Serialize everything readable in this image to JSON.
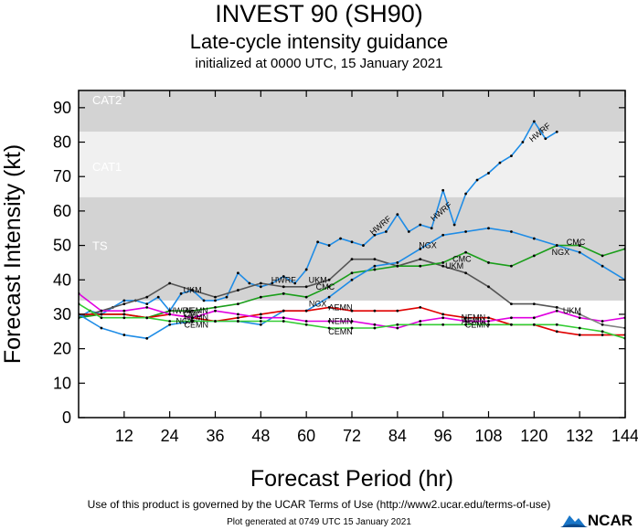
{
  "header": {
    "title": "INVEST 90 (SH90)",
    "subtitle": "Late-cycle intensity guidance",
    "init": "initialized at 0000 UTC, 15 January 2021"
  },
  "footer": {
    "terms": "Use of this product is governed by the UCAR Terms of Use (http://www2.ucar.edu/terms-of-use)",
    "generated": "Plot generated at 0749 UTC   15 January 2021",
    "logo_text": "NCAR"
  },
  "chart_data": {
    "type": "line",
    "xlabel": "Forecast Period (hr)",
    "ylabel": "Forecast Intensity (kt)",
    "xlim": [
      0,
      144
    ],
    "ylim": [
      0,
      95
    ],
    "xticks": [
      12,
      24,
      36,
      48,
      60,
      72,
      84,
      96,
      108,
      120,
      132,
      144
    ],
    "yticks": [
      0,
      10,
      20,
      30,
      40,
      50,
      60,
      70,
      80,
      90
    ],
    "bands": [
      {
        "label": "CAT2",
        "from": 83,
        "to": 95,
        "color": "#d3d3d3"
      },
      {
        "label": "CAT1",
        "from": 64,
        "to": 83,
        "color": "#f0f0f0"
      },
      {
        "label": "TS",
        "from": 34,
        "to": 64,
        "color": "#d3d3d3"
      }
    ],
    "series": [
      {
        "name": "HWRF",
        "color": "#1e8ce6",
        "x": [
          0,
          3,
          6,
          9,
          12,
          15,
          18,
          21,
          24,
          27,
          30,
          33,
          36,
          39,
          42,
          45,
          48,
          51,
          54,
          57,
          60,
          63,
          66,
          69,
          72,
          75,
          78,
          81,
          84,
          87,
          90,
          93,
          96,
          99,
          102,
          105,
          108,
          111,
          114,
          117,
          120,
          123,
          126
        ],
        "y": [
          29,
          31,
          30,
          32,
          34,
          34,
          33,
          35,
          31,
          36,
          37,
          34,
          34,
          35,
          42,
          39,
          38,
          39,
          41,
          39,
          43,
          51,
          50,
          52,
          51,
          50,
          53,
          54,
          59,
          54,
          56,
          55,
          66,
          56,
          65,
          69,
          71,
          74,
          76,
          80,
          86,
          81,
          83
        ],
        "labels": [
          {
            "x": 27,
            "y": 31
          },
          {
            "x": 54,
            "y": 40
          },
          {
            "x": 80,
            "y": 56
          },
          {
            "x": 96,
            "y": 60
          },
          {
            "x": 122,
            "y": 83
          }
        ]
      },
      {
        "name": "UKM",
        "color": "#555555",
        "x": [
          0,
          6,
          12,
          18,
          24,
          30,
          36,
          42,
          48,
          54,
          60,
          66,
          72,
          78,
          84,
          90,
          96,
          102,
          108,
          114,
          120,
          126
        ],
        "y": [
          29,
          31,
          33,
          35,
          39,
          37,
          35,
          37,
          39,
          38,
          38,
          40,
          46,
          46,
          44,
          46,
          44,
          42,
          38,
          33,
          33,
          32
        ],
        "labels": [
          {
            "x": 30,
            "y": 37
          },
          {
            "x": 63,
            "y": 40
          },
          {
            "x": 99,
            "y": 44
          },
          {
            "x": 130,
            "y": 31
          }
        ]
      },
      {
        "name": "CMC",
        "color": "#1a9e1a",
        "x": [
          0,
          6,
          12,
          18,
          24,
          30,
          36,
          42,
          48,
          54,
          60,
          66,
          72,
          78,
          84,
          90,
          96,
          102,
          108,
          114,
          120,
          126,
          132,
          138,
          144
        ],
        "y": [
          29,
          30,
          30,
          29,
          31,
          31,
          32,
          33,
          35,
          36,
          35,
          38,
          42,
          43,
          44,
          44,
          45,
          48,
          45,
          44,
          47,
          50,
          50,
          47,
          49
        ],
        "labels": [
          {
            "x": 30,
            "y": 30
          },
          {
            "x": 65,
            "y": 38
          },
          {
            "x": 101,
            "y": 46
          },
          {
            "x": 131,
            "y": 51
          }
        ]
      },
      {
        "name": "NGX",
        "color": "#1e8ce6",
        "x": [
          0,
          6,
          12,
          18,
          24,
          30,
          36,
          42,
          48,
          54,
          60,
          66,
          72,
          78,
          84,
          90,
          96,
          102,
          108,
          114,
          120,
          126,
          132,
          138,
          144
        ],
        "y": [
          30,
          26,
          24,
          23,
          27,
          28,
          28,
          28,
          27,
          31,
          31,
          35,
          40,
          44,
          45,
          49,
          53,
          54,
          55,
          54,
          52,
          50,
          48,
          44,
          40
        ],
        "labels": [
          {
            "x": 28,
            "y": 28
          },
          {
            "x": 63,
            "y": 33
          },
          {
            "x": 92,
            "y": 50
          },
          {
            "x": 127,
            "y": 48
          }
        ]
      },
      {
        "name": "AEMN",
        "color": "#e00000",
        "x": [
          0,
          6,
          12,
          18,
          24,
          30,
          36,
          42,
          48,
          54,
          60,
          66,
          72,
          78,
          84,
          90,
          96,
          102,
          108,
          114,
          120,
          126,
          132,
          138,
          144
        ],
        "y": [
          30,
          30,
          30,
          29,
          30,
          29,
          28,
          29,
          30,
          31,
          31,
          32,
          31,
          31,
          31,
          32,
          30,
          29,
          29,
          27,
          27,
          25,
          24,
          24,
          24
        ],
        "labels": [
          {
            "x": 31,
            "y": 31
          },
          {
            "x": 69,
            "y": 32
          },
          {
            "x": 104,
            "y": 28
          }
        ]
      },
      {
        "name": "NEMN",
        "color": "#e000e0",
        "x": [
          0,
          6,
          12,
          18,
          24,
          30,
          36,
          42,
          48,
          54,
          60,
          66,
          72,
          78,
          84,
          90,
          96,
          102,
          108,
          114,
          120,
          126,
          132,
          138,
          144
        ],
        "y": [
          36,
          31,
          31,
          32,
          30,
          29,
          31,
          30,
          29,
          29,
          28,
          28,
          28,
          27,
          26,
          28,
          29,
          28,
          28,
          29,
          29,
          31,
          29,
          28,
          29
        ],
        "labels": [
          {
            "x": 31,
            "y": 29
          },
          {
            "x": 69,
            "y": 28
          },
          {
            "x": 104,
            "y": 29
          }
        ]
      },
      {
        "name": "CEMN",
        "color": "#33cc33",
        "x": [
          0,
          6,
          12,
          18,
          24,
          30,
          36,
          42,
          48,
          54,
          60,
          66,
          72,
          78,
          84,
          90,
          96,
          102,
          108,
          114,
          120,
          126,
          132,
          138,
          144
        ],
        "y": [
          33,
          29,
          29,
          29,
          28,
          28,
          28,
          28,
          28,
          28,
          27,
          26,
          26,
          26,
          27,
          27,
          27,
          27,
          27,
          27,
          27,
          27,
          26,
          25,
          23
        ],
        "labels": [
          {
            "x": 31,
            "y": 27
          },
          {
            "x": 69,
            "y": 25
          },
          {
            "x": 105,
            "y": 27
          }
        ]
      },
      {
        "name": "",
        "color": "#7f7f7f",
        "x": [
          126,
          132,
          138,
          144
        ],
        "y": [
          32,
          30,
          27,
          26
        ],
        "labels": []
      }
    ]
  }
}
